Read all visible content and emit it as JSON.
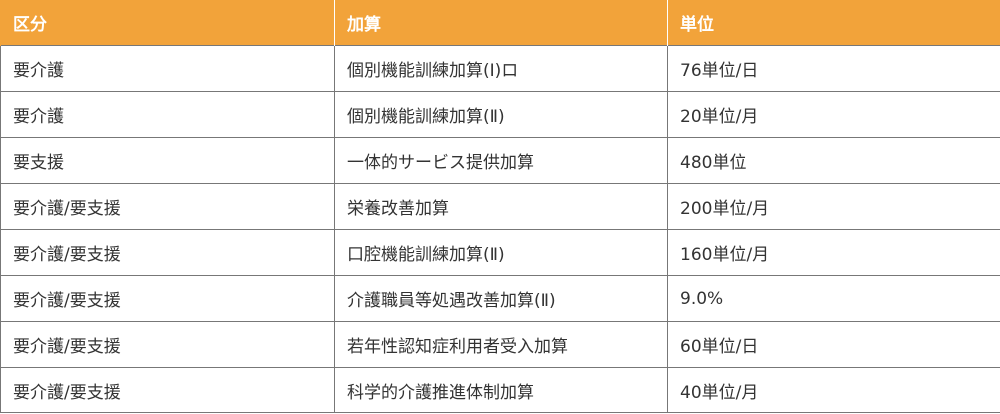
{
  "table": {
    "header_color": "#F2A33A",
    "headers": [
      "区分",
      "加算",
      "単位"
    ],
    "rows": [
      [
        "要介護",
        "個別機能訓練加算(Ⅰ)ロ",
        "76単位/日"
      ],
      [
        "要介護",
        "個別機能訓練加算(Ⅱ)",
        "20単位/月"
      ],
      [
        "要支援",
        "一体的サービス提供加算",
        "480単位"
      ],
      [
        "要介護/要支援",
        "栄養改善加算",
        "200単位/月"
      ],
      [
        "要介護/要支援",
        "口腔機能訓練加算(Ⅱ)",
        "160単位/月"
      ],
      [
        "要介護/要支援",
        "介護職員等処遇改善加算(Ⅱ)",
        "9.0%"
      ],
      [
        "要介護/要支援",
        "若年性認知症利用者受入加算",
        "60単位/日"
      ],
      [
        "要介護/要支援",
        "科学的介護推進体制加算",
        "40単位/月"
      ]
    ]
  }
}
